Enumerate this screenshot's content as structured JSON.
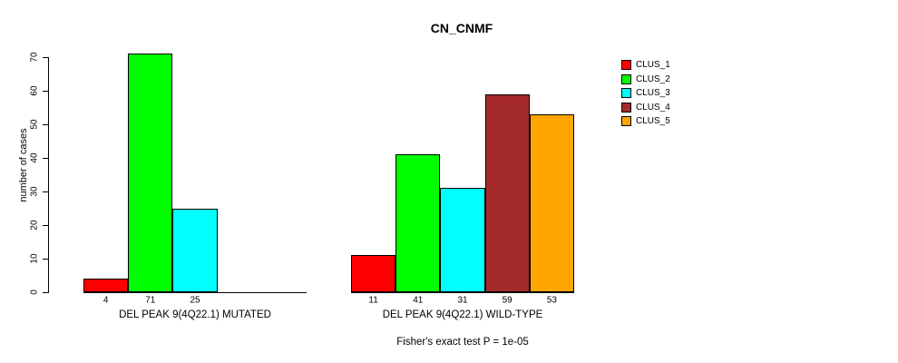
{
  "chart_data": {
    "type": "bar",
    "title": "CN_CNMF",
    "ylabel": "number of cases",
    "ylim": [
      0,
      70
    ],
    "yticks": [
      0,
      10,
      20,
      30,
      40,
      50,
      60,
      70
    ],
    "grid": false,
    "legend_position": "right-outside",
    "series": [
      {
        "name": "CLUS_1",
        "color": "#FF0000"
      },
      {
        "name": "CLUS_2",
        "color": "#00FF00"
      },
      {
        "name": "CLUS_3",
        "color": "#00FFFF"
      },
      {
        "name": "CLUS_4",
        "color": "#A52A2A"
      },
      {
        "name": "CLUS_5",
        "color": "#FFA500"
      }
    ],
    "groups": [
      {
        "label": "DEL PEAK 9(4Q22.1) MUTATED",
        "values": [
          4,
          71,
          25,
          0,
          0
        ]
      },
      {
        "label": "DEL PEAK 9(4Q22.1) WILD-TYPE",
        "values": [
          11,
          41,
          31,
          59,
          53
        ]
      }
    ],
    "annotation": "Fisher's exact test P = 1e-05"
  }
}
